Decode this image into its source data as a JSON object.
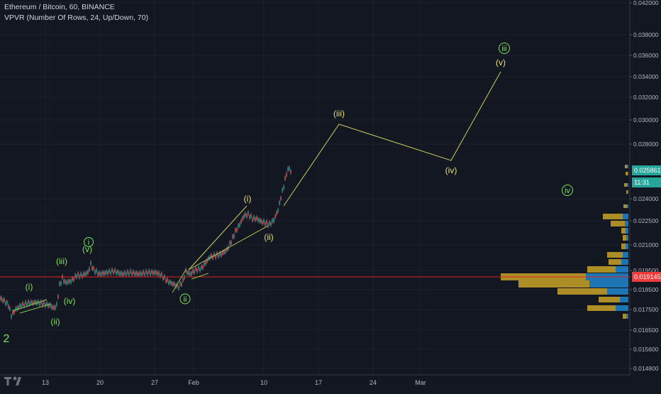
{
  "header": {
    "title": "Ethereum / Bitcoin, 60, BINANCE",
    "indicator": "VPVR (Number Of Rows, 24, Up/Down, 70)"
  },
  "price_axis": {
    "labels": [
      "0.042000",
      "0.038000",
      "0.036000",
      "0.034000",
      "0.032000",
      "0.030000",
      "0.028000",
      "0.024000",
      "0.022500",
      "0.021000",
      "0.019500",
      "0.018500",
      "0.017500",
      "0.016500",
      "0.015600",
      "0.014800"
    ],
    "current_price": "0.025861",
    "countdown": "11:31",
    "line_price": "0.019145"
  },
  "time_axis": {
    "labels": [
      "13",
      "20",
      "27",
      "Feb",
      "10",
      "17",
      "24",
      "Mar"
    ]
  },
  "wave_labels": {
    "green": [
      "(i)",
      "(iii)",
      "(iv)",
      "(ii)",
      "i",
      "(v)",
      "ii",
      "iii",
      "iv",
      "2"
    ],
    "yellow": [
      "(i)",
      "(ii)",
      "(iii)",
      "(iv)",
      "(v)"
    ]
  },
  "colors": {
    "background": "#131722",
    "grid": "#1f2330",
    "candle": "#c8c8c8",
    "green_label": "#7fe35a",
    "yellow_label": "#e8e077",
    "projection_line": "#c9cd5e",
    "horizontal_line": "#e12424",
    "vp_up": "#1f7fc4",
    "vp_down": "#c9a227",
    "tag_green": "#26a69a",
    "tag_red": "#ef3b3b"
  }
}
